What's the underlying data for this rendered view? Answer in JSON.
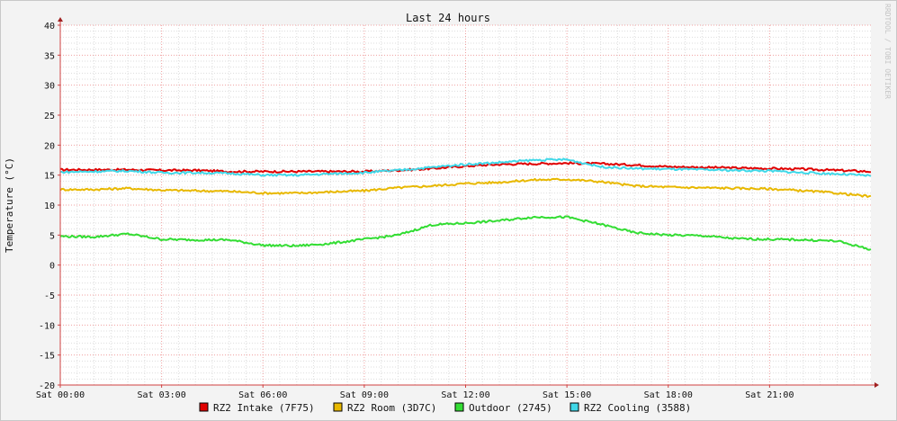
{
  "chart_data": {
    "type": "line",
    "title": "Last 24 hours",
    "ylabel": "Temperature (°C)",
    "watermark": "RRDTOOL / TOBI OETIKER",
    "ylim": [
      -20,
      40
    ],
    "xlim": [
      0,
      24
    ],
    "yticks": [
      -20,
      -15,
      -10,
      -5,
      0,
      5,
      10,
      15,
      20,
      25,
      30,
      35,
      40
    ],
    "xticks": [
      {
        "x": 0,
        "label": "Sat 00:00"
      },
      {
        "x": 3,
        "label": "Sat 03:00"
      },
      {
        "x": 6,
        "label": "Sat 06:00"
      },
      {
        "x": 9,
        "label": "Sat 09:00"
      },
      {
        "x": 12,
        "label": "Sat 12:00"
      },
      {
        "x": 15,
        "label": "Sat 15:00"
      },
      {
        "x": 18,
        "label": "Sat 18:00"
      },
      {
        "x": 21,
        "label": "Sat 21:00"
      }
    ],
    "grid": true,
    "legend_position": "bottom",
    "x": [
      0,
      1,
      2,
      3,
      4,
      5,
      6,
      7,
      8,
      9,
      10,
      11,
      12,
      13,
      14,
      15,
      16,
      17,
      18,
      19,
      20,
      21,
      22,
      23,
      24
    ],
    "series": [
      {
        "name": "RZ2 Intake (7F75)",
        "color": "#e00000",
        "values": [
          15.9,
          15.9,
          15.9,
          15.8,
          15.8,
          15.6,
          15.6,
          15.6,
          15.6,
          15.6,
          15.8,
          16.1,
          16.5,
          16.8,
          16.9,
          17.0,
          16.9,
          16.7,
          16.4,
          16.3,
          16.2,
          16.1,
          16.0,
          15.8,
          15.6
        ]
      },
      {
        "name": "RZ2 Room (3D7C)",
        "color": "#e8b800",
        "values": [
          12.6,
          12.6,
          12.8,
          12.5,
          12.4,
          12.3,
          12.0,
          12.0,
          12.2,
          12.4,
          12.9,
          13.2,
          13.6,
          13.8,
          14.2,
          14.3,
          13.9,
          13.2,
          13.0,
          12.9,
          12.8,
          12.7,
          12.4,
          12.0,
          11.4
        ]
      },
      {
        "name": "Outdoor (2745)",
        "color": "#33dd33",
        "values": [
          4.8,
          4.7,
          5.2,
          4.3,
          4.2,
          4.2,
          3.3,
          3.2,
          3.6,
          4.3,
          5.0,
          6.7,
          7.0,
          7.4,
          8.0,
          8.0,
          6.8,
          5.4,
          5.0,
          4.9,
          4.4,
          4.3,
          4.2,
          4.0,
          2.6
        ]
      },
      {
        "name": "RZ2 Cooling (3588)",
        "color": "#40d8e8",
        "values": [
          15.5,
          15.6,
          15.7,
          15.4,
          15.4,
          15.3,
          15.0,
          15.0,
          15.2,
          15.4,
          15.8,
          16.3,
          16.8,
          17.1,
          17.5,
          17.6,
          16.4,
          16.1,
          16.0,
          15.9,
          15.8,
          15.7,
          15.4,
          15.2,
          14.9
        ]
      }
    ]
  }
}
